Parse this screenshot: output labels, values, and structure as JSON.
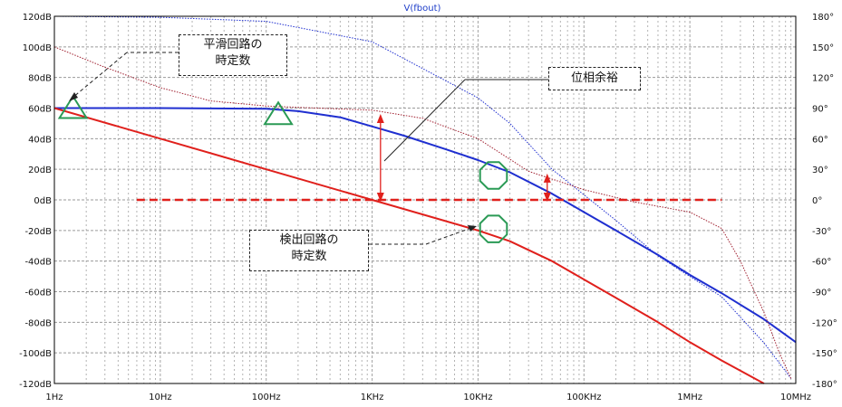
{
  "chart_data": {
    "type": "line",
    "title": "V(fbout)",
    "x_scale": "log",
    "xlim": [
      1,
      10000000
    ],
    "ylim": [
      -120,
      120
    ],
    "y2lim": [
      -180,
      180
    ],
    "grid": true,
    "x_ticks": [
      "1Hz",
      "10Hz",
      "100Hz",
      "1KHz",
      "10KHz",
      "100KHz",
      "1MHz",
      "10MHz"
    ],
    "y_ticks": [
      "120dB",
      "100dB",
      "80dB",
      "60dB",
      "40dB",
      "20dB",
      "0dB",
      "-20dB",
      "-40dB",
      "-60dB",
      "-80dB",
      "-100dB",
      "-120dB"
    ],
    "y2_ticks": [
      "180°",
      "150°",
      "120°",
      "90°",
      "60°",
      "30°",
      "0°",
      "-30°",
      "-60°",
      "-90°",
      "-120°",
      "-150°",
      "-180°"
    ],
    "series": [
      {
        "color": "#1f2fd0",
        "axis": "left",
        "style": "solid",
        "width": 2,
        "x": [
          1,
          10,
          100,
          200,
          500,
          1000,
          2000,
          5000,
          10000,
          20000,
          50000,
          100000,
          200000,
          500000,
          1000000,
          2000000,
          5000000,
          10000000
        ],
        "y": [
          60,
          60,
          59.5,
          58,
          54,
          48,
          42,
          33,
          26,
          18,
          4,
          -8,
          -20,
          -36,
          -49,
          -61,
          -78,
          -93
        ]
      },
      {
        "color": "#e0201c",
        "axis": "left",
        "style": "solid",
        "width": 2,
        "x": [
          1,
          10,
          100,
          1000,
          10000,
          20000,
          50000,
          100000,
          200000,
          500000,
          1000000,
          2000000,
          5000000
        ],
        "y": [
          60,
          40,
          20,
          0,
          -20,
          -27,
          -40,
          -52,
          -64,
          -80,
          -93,
          -105,
          -120
        ]
      },
      {
        "color": "#1f2fd0",
        "axis": "right",
        "style": "dotted",
        "width": 1,
        "x": [
          1,
          10,
          100,
          1000,
          10000,
          20000,
          50000,
          100000,
          200000,
          500000,
          1000000,
          2000000,
          3000000,
          5000000,
          7000000,
          9000000
        ],
        "y": [
          180,
          179,
          175,
          155,
          100,
          75,
          30,
          5,
          -20,
          -55,
          -75,
          -95,
          -115,
          -140,
          -160,
          -175
        ]
      },
      {
        "color": "#a02030",
        "axis": "right",
        "style": "dotted",
        "width": 1,
        "x": [
          1,
          3,
          10,
          30,
          100,
          300,
          1000,
          3000,
          10000,
          30000,
          100000,
          300000,
          1000000,
          2000000,
          3000000,
          5000000,
          7000000,
          9000000
        ],
        "y": [
          150,
          130,
          110,
          97,
          92,
          90,
          88,
          80,
          60,
          28,
          10,
          -2,
          -12,
          -28,
          -60,
          -110,
          -150,
          -175
        ]
      },
      {
        "color": "#e0201c",
        "axis": "left",
        "style": "dashed",
        "width": 2.5,
        "x": [
          6,
          2000000
        ],
        "y": [
          0,
          0
        ]
      }
    ],
    "markers": [
      {
        "shape": "triangle",
        "color": "#2a9a55",
        "x": 1.5,
        "y": 60
      },
      {
        "shape": "triangle",
        "color": "#2a9a55",
        "x": 130,
        "y": 56
      },
      {
        "shape": "octagon",
        "color": "#2a9a55",
        "x": 14000,
        "y": 16
      },
      {
        "shape": "octagon",
        "color": "#2a9a55",
        "x": 14000,
        "y": -19
      }
    ],
    "arrows": [
      {
        "color": "#e0201c",
        "x": 1200,
        "y_from": 0,
        "y_to": 55
      },
      {
        "color": "#e0201c",
        "x": 45000,
        "y_from": 0,
        "y_to": 16
      }
    ],
    "annotations": [
      {
        "id": "smoothing",
        "lines": [
          "平滑回路の",
          "時定数"
        ]
      },
      {
        "id": "margin",
        "lines": [
          "位相余裕"
        ]
      },
      {
        "id": "detect",
        "lines": [
          "検出回路の",
          "時定数"
        ]
      }
    ]
  }
}
